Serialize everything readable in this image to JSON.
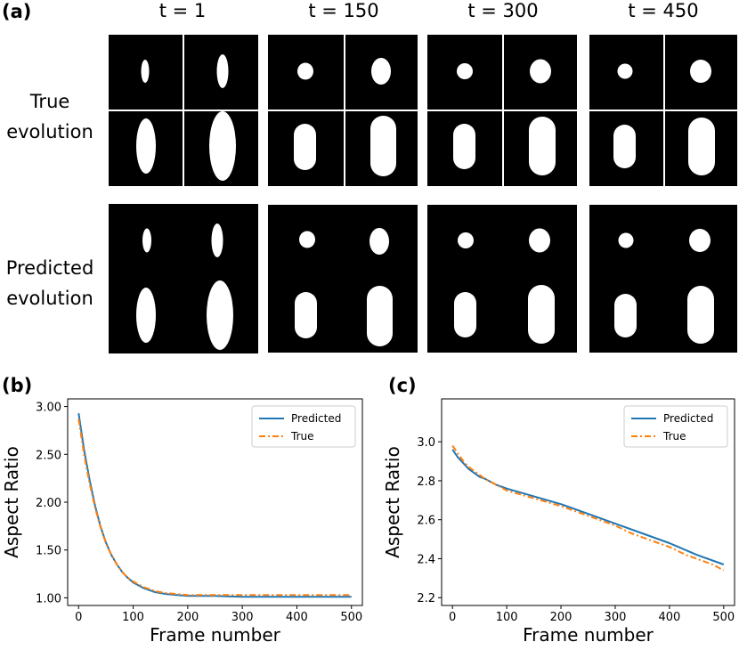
{
  "panels": {
    "a": "(a)",
    "b": "(b)",
    "c": "(c)"
  },
  "time_labels": [
    "t = 1",
    "t = 150",
    "t = 300",
    "t = 450"
  ],
  "row_labels": {
    "true_line1": "True",
    "true_line2": "evolution",
    "pred_line1": "Predicted",
    "pred_line2": "evolution"
  },
  "colors": {
    "predicted": "#1f77b4",
    "true": "#ff7f0e"
  },
  "chart_data": [
    {
      "id": "b",
      "type": "line",
      "xlabel": "Frame number",
      "ylabel": "Aspect Ratio",
      "xlim": [
        -20,
        520
      ],
      "ylim": [
        0.92,
        3.08
      ],
      "xticks": [
        0,
        100,
        200,
        300,
        400,
        500
      ],
      "yticks": [
        1.0,
        1.5,
        2.0,
        2.5,
        3.0
      ],
      "ytick_labels": [
        "1.00",
        "1.50",
        "2.00",
        "2.50",
        "3.00"
      ],
      "legend_position": "top-right",
      "series": [
        {
          "name": "Predicted",
          "style": "solid",
          "x": [
            0,
            10,
            20,
            30,
            40,
            50,
            60,
            70,
            80,
            90,
            100,
            120,
            140,
            160,
            180,
            200,
            250,
            300,
            350,
            400,
            450,
            500
          ],
          "y": [
            2.93,
            2.55,
            2.24,
            1.97,
            1.75,
            1.58,
            1.45,
            1.35,
            1.27,
            1.21,
            1.16,
            1.1,
            1.06,
            1.04,
            1.03,
            1.02,
            1.02,
            1.01,
            1.01,
            1.01,
            1.01,
            1.01
          ]
        },
        {
          "name": "True",
          "style": "dashdot",
          "x": [
            0,
            10,
            20,
            30,
            40,
            50,
            60,
            70,
            80,
            90,
            100,
            120,
            140,
            160,
            180,
            200,
            250,
            300,
            350,
            400,
            450,
            500
          ],
          "y": [
            2.87,
            2.5,
            2.2,
            1.95,
            1.74,
            1.57,
            1.45,
            1.35,
            1.27,
            1.21,
            1.17,
            1.11,
            1.07,
            1.05,
            1.04,
            1.03,
            1.03,
            1.03,
            1.03,
            1.03,
            1.03,
            1.03
          ]
        }
      ]
    },
    {
      "id": "c",
      "type": "line",
      "xlabel": "Frame number",
      "ylabel": "Aspect Ratio",
      "xlim": [
        -20,
        520
      ],
      "ylim": [
        2.16,
        3.22
      ],
      "xticks": [
        0,
        100,
        200,
        300,
        400,
        500
      ],
      "yticks": [
        2.2,
        2.4,
        2.6,
        2.8,
        3.0
      ],
      "ytick_labels": [
        "2.2",
        "2.4",
        "2.6",
        "2.8",
        "3.0"
      ],
      "legend_position": "top-right",
      "series": [
        {
          "name": "Predicted",
          "style": "solid",
          "x": [
            0,
            10,
            20,
            30,
            40,
            50,
            60,
            80,
            100,
            150,
            200,
            250,
            300,
            350,
            400,
            450,
            500
          ],
          "y": [
            2.96,
            2.92,
            2.89,
            2.86,
            2.84,
            2.82,
            2.81,
            2.78,
            2.76,
            2.72,
            2.68,
            2.63,
            2.58,
            2.53,
            2.48,
            2.42,
            2.37
          ]
        },
        {
          "name": "True",
          "style": "dashdot",
          "x": [
            0,
            10,
            20,
            30,
            40,
            50,
            60,
            80,
            100,
            150,
            200,
            230,
            250,
            280,
            300,
            330,
            350,
            380,
            400,
            430,
            450,
            480,
            500
          ],
          "y": [
            2.98,
            2.94,
            2.9,
            2.87,
            2.85,
            2.83,
            2.81,
            2.78,
            2.75,
            2.71,
            2.67,
            2.64,
            2.62,
            2.59,
            2.57,
            2.53,
            2.51,
            2.48,
            2.46,
            2.42,
            2.4,
            2.37,
            2.34
          ]
        }
      ]
    }
  ]
}
